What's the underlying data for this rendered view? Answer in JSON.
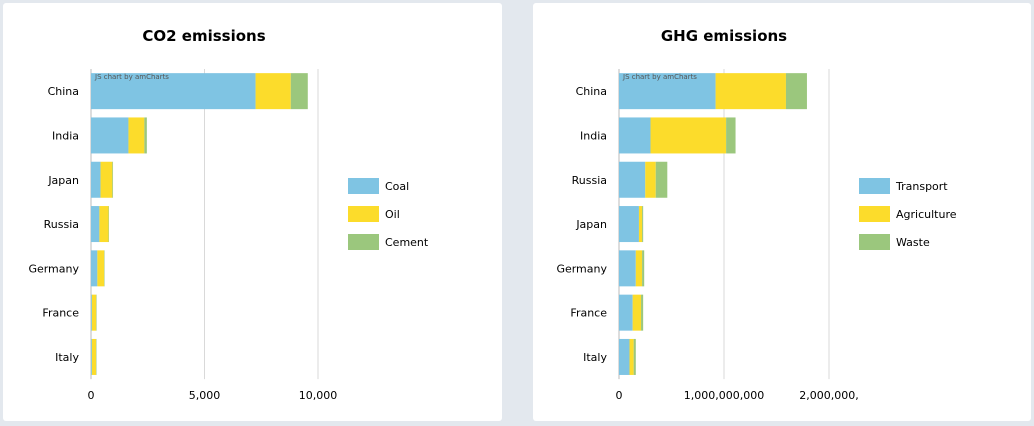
{
  "chart_data": [
    {
      "type": "bar",
      "orientation": "horizontal",
      "stacked": true,
      "title": "CO2 emissions",
      "credit": "JS chart by amCharts",
      "categories": [
        "China",
        "India",
        "Japan",
        "Russia",
        "Germany",
        "France",
        "Italy"
      ],
      "series": [
        {
          "name": "Coal",
          "color": "#7fc4e3",
          "values": [
            7250,
            1650,
            420,
            370,
            280,
            40,
            40
          ]
        },
        {
          "name": "Oil",
          "color": "#fcdc2b",
          "values": [
            1550,
            700,
            520,
            400,
            300,
            190,
            180
          ]
        },
        {
          "name": "Cement",
          "color": "#9bc77d",
          "values": [
            750,
            110,
            30,
            20,
            20,
            20,
            20
          ]
        }
      ],
      "xlim": [
        0,
        10000
      ],
      "xticks": [
        "0",
        "5,000",
        "10,000"
      ],
      "grid": true,
      "legend": "right"
    },
    {
      "type": "bar",
      "orientation": "horizontal",
      "stacked": true,
      "title": "GHG emissions",
      "credit": "JS chart by amCharts",
      "categories": [
        "China",
        "India",
        "Russia",
        "Japan",
        "Germany",
        "France",
        "Italy"
      ],
      "series": [
        {
          "name": "Transport",
          "color": "#7fc4e3",
          "values": [
            920000000,
            300000000,
            250000000,
            190000000,
            160000000,
            130000000,
            100000000
          ]
        },
        {
          "name": "Agriculture",
          "color": "#fcdc2b",
          "values": [
            670000000,
            720000000,
            100000000,
            30000000,
            60000000,
            80000000,
            40000000
          ]
        },
        {
          "name": "Waste",
          "color": "#9bc77d",
          "values": [
            200000000,
            90000000,
            110000000,
            10000000,
            20000000,
            20000000,
            20000000
          ]
        }
      ],
      "xlim": [
        0,
        2000000000
      ],
      "xticks": [
        "0",
        "1,000,000,000",
        "2,000,000,"
      ],
      "grid": true,
      "legend": "right"
    }
  ]
}
